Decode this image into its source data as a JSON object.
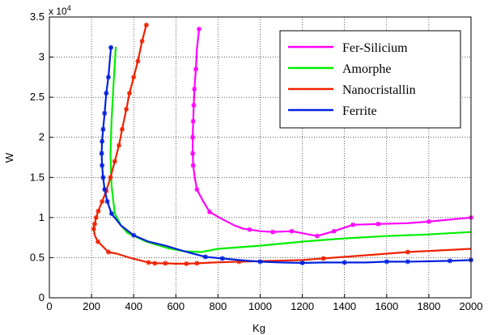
{
  "chart_data": {
    "type": "line",
    "title": "",
    "xlabel": "Kg",
    "ylabel": "W",
    "xlim": [
      0,
      2000
    ],
    "ylim": [
      0,
      35000
    ],
    "x_ticks": [
      "0",
      "200",
      "400",
      "600",
      "800",
      "1000",
      "1200",
      "1400",
      "1600",
      "1800",
      "2000"
    ],
    "y_ticks": [
      "0",
      "0.5",
      "1",
      "1.5",
      "2",
      "2.5",
      "3",
      "3.5"
    ],
    "y_multiplier_base": "x 10",
    "y_multiplier_exp": "4",
    "grid": true,
    "legend_position": "top-right",
    "series": [
      {
        "name": "Fer-Silicium",
        "color": "#ff00ff",
        "points": [
          [
            710,
            33500
          ],
          [
            700,
            31000
          ],
          [
            695,
            28500
          ],
          [
            688,
            26000
          ],
          [
            685,
            24000
          ],
          [
            682,
            22000
          ],
          [
            680,
            20000
          ],
          [
            680,
            18000
          ],
          [
            682,
            16500
          ],
          [
            690,
            15000
          ],
          [
            700,
            13500
          ],
          [
            730,
            12000
          ],
          [
            760,
            10700
          ],
          [
            820,
            9800
          ],
          [
            880,
            9000
          ],
          [
            920,
            8600
          ],
          [
            950,
            8500
          ],
          [
            1000,
            8300
          ],
          [
            1060,
            8200
          ],
          [
            1150,
            8300
          ],
          [
            1270,
            7700
          ],
          [
            1350,
            8300
          ],
          [
            1440,
            9100
          ],
          [
            1560,
            9200
          ],
          [
            1700,
            9300
          ],
          [
            1800,
            9500
          ],
          [
            2000,
            10000
          ]
        ],
        "marker_indices": [
          0,
          2,
          3,
          4,
          5,
          6,
          7,
          8,
          10,
          12,
          16,
          18,
          19,
          20,
          21,
          22,
          23,
          25,
          26
        ]
      },
      {
        "name": "Amorphe",
        "color": "#00ee00",
        "points": [
          [
            315,
            31300
          ],
          [
            305,
            27000
          ],
          [
            295,
            22000
          ],
          [
            290,
            18000
          ],
          [
            295,
            14000
          ],
          [
            310,
            10500
          ],
          [
            340,
            9000
          ],
          [
            370,
            8100
          ],
          [
            460,
            7000
          ],
          [
            560,
            6200
          ],
          [
            640,
            5800
          ],
          [
            720,
            5700
          ],
          [
            800,
            6100
          ],
          [
            1000,
            6500
          ],
          [
            1200,
            7000
          ],
          [
            1400,
            7400
          ],
          [
            1600,
            7700
          ],
          [
            1800,
            7900
          ],
          [
            2000,
            8200
          ]
        ],
        "marker_indices": []
      },
      {
        "name": "Nanocristallin",
        "color": "#ee2200",
        "points": [
          [
            460,
            34000
          ],
          [
            440,
            32000
          ],
          [
            420,
            29500
          ],
          [
            400,
            27500
          ],
          [
            380,
            25500
          ],
          [
            365,
            23500
          ],
          [
            345,
            21000
          ],
          [
            330,
            19000
          ],
          [
            310,
            17000
          ],
          [
            290,
            15000
          ],
          [
            270,
            13300
          ],
          [
            250,
            12000
          ],
          [
            232,
            10800
          ],
          [
            222,
            10000
          ],
          [
            215,
            9200
          ],
          [
            210,
            8600
          ],
          [
            215,
            7800
          ],
          [
            230,
            7000
          ],
          [
            250,
            6500
          ],
          [
            280,
            5700
          ],
          [
            320,
            5500
          ],
          [
            380,
            5000
          ],
          [
            440,
            4600
          ],
          [
            470,
            4400
          ],
          [
            500,
            4300
          ],
          [
            550,
            4300
          ],
          [
            600,
            4250
          ],
          [
            650,
            4250
          ],
          [
            700,
            4300
          ],
          [
            780,
            4400
          ],
          [
            900,
            4500
          ],
          [
            1050,
            4600
          ],
          [
            1200,
            4700
          ],
          [
            1300,
            4900
          ],
          [
            1500,
            5300
          ],
          [
            1700,
            5700
          ],
          [
            1850,
            5900
          ],
          [
            2000,
            6100
          ]
        ],
        "marker_indices": [
          0,
          1,
          2,
          3,
          4,
          5,
          6,
          7,
          8,
          9,
          10,
          11,
          12,
          13,
          14,
          15,
          17,
          19,
          23,
          24,
          25,
          27,
          28,
          30,
          33,
          35
        ]
      },
      {
        "name": "Ferrite",
        "color": "#0022dd",
        "points": [
          [
            292,
            31200
          ],
          [
            285,
            29000
          ],
          [
            280,
            27500
          ],
          [
            270,
            25500
          ],
          [
            262,
            23000
          ],
          [
            255,
            21000
          ],
          [
            250,
            19500
          ],
          [
            248,
            18000
          ],
          [
            250,
            16500
          ],
          [
            255,
            15000
          ],
          [
            262,
            13500
          ],
          [
            275,
            12000
          ],
          [
            295,
            10500
          ],
          [
            340,
            9000
          ],
          [
            400,
            7800
          ],
          [
            470,
            7000
          ],
          [
            550,
            6500
          ],
          [
            640,
            5800
          ],
          [
            740,
            5100
          ],
          [
            820,
            4900
          ],
          [
            900,
            4700
          ],
          [
            1000,
            4500
          ],
          [
            1100,
            4400
          ],
          [
            1200,
            4350
          ],
          [
            1300,
            4400
          ],
          [
            1400,
            4400
          ],
          [
            1500,
            4400
          ],
          [
            1600,
            4500
          ],
          [
            1700,
            4500
          ],
          [
            1800,
            4550
          ],
          [
            1900,
            4600
          ],
          [
            2000,
            4700
          ]
        ],
        "marker_indices": [
          0,
          2,
          3,
          4,
          5,
          6,
          7,
          8,
          9,
          10,
          11,
          12,
          14,
          18,
          19,
          21,
          23,
          25,
          27,
          28,
          30,
          31
        ]
      }
    ]
  }
}
